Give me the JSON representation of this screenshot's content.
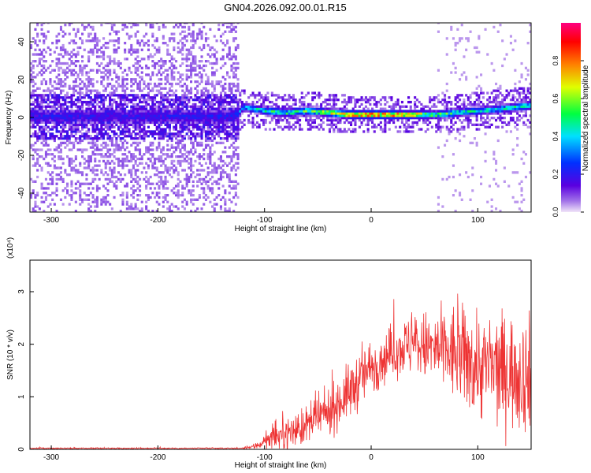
{
  "title": "GN04.2026.092.00.01.R15",
  "chart_data": [
    {
      "type": "heatmap",
      "xlabel": "Height of straight line (km)",
      "ylabel": "Frequency (Hz)",
      "xlim": [
        -320,
        150
      ],
      "ylim": [
        -50,
        50
      ],
      "xticks": [
        -300,
        -200,
        -100,
        0,
        100
      ],
      "yticks": [
        -40,
        -20,
        0,
        20,
        40
      ],
      "colorbar": {
        "label": "Normalized spectral amplitude",
        "range": [
          0,
          1
        ],
        "ticks": [
          "0.0",
          "0.2",
          "0.4",
          "0.6",
          "0.8"
        ],
        "colormap": "rainbow: purple-blue-cyan-green-yellow-orange-red-magenta"
      },
      "ridge_center_frequency": {
        "x": [
          -320,
          -200,
          -130,
          -120,
          -100,
          -80,
          -60,
          -40,
          -20,
          0,
          20,
          40,
          60,
          80,
          100,
          120,
          150
        ],
        "y": [
          0,
          0,
          0,
          5,
          3,
          2,
          3,
          2,
          1,
          1,
          1,
          1,
          1,
          2,
          3,
          4,
          6
        ]
      },
      "ridge_peak_amplitude": {
        "x": [
          -320,
          -200,
          -130,
          -120,
          -100,
          -80,
          -60,
          -40,
          -20,
          0,
          20,
          40,
          60,
          80,
          100,
          120,
          150
        ],
        "y": [
          0.22,
          0.22,
          0.25,
          0.45,
          0.5,
          0.55,
          0.6,
          0.7,
          0.85,
          0.9,
          0.9,
          0.8,
          0.6,
          0.55,
          0.5,
          0.5,
          0.55
        ]
      },
      "noise_region_xlim": [
        -320,
        -125
      ]
    },
    {
      "type": "line",
      "xlabel": "Height of straight line (km)",
      "ylabel": "SNR (10 * v/v)",
      "y_multiplier": "(x10⁴)",
      "xlim": [
        -320,
        150
      ],
      "ylim": [
        0,
        3.6
      ],
      "xticks": [
        -300,
        -200,
        -100,
        0,
        100
      ],
      "yticks": [
        0,
        1,
        2,
        3
      ],
      "series": [
        {
          "color": "#ee3333",
          "envelope_x": [
            -320,
            -120,
            -110,
            -100,
            -80,
            -60,
            -50,
            -40,
            -30,
            -20,
            -10,
            0,
            10,
            20,
            30,
            40,
            50,
            60,
            70,
            80,
            90,
            100,
            110,
            120,
            130,
            140,
            150
          ],
          "envelope_mean": [
            0.02,
            0.02,
            0.05,
            0.15,
            0.3,
            0.45,
            0.6,
            0.7,
            0.9,
            1.1,
            1.35,
            1.55,
            1.7,
            1.85,
            1.95,
            2.0,
            1.95,
            1.9,
            1.85,
            1.8,
            1.7,
            1.6,
            1.55,
            1.5,
            1.5,
            1.45,
            1.4
          ],
          "envelope_spread": [
            0.01,
            0.01,
            0.05,
            0.12,
            0.25,
            0.3,
            0.35,
            0.35,
            0.4,
            0.45,
            0.45,
            0.45,
            0.4,
            0.4,
            0.45,
            0.5,
            0.55,
            0.6,
            0.7,
            0.8,
            0.8,
            0.85,
            0.85,
            0.9,
            0.9,
            0.9,
            0.9
          ]
        }
      ]
    }
  ]
}
